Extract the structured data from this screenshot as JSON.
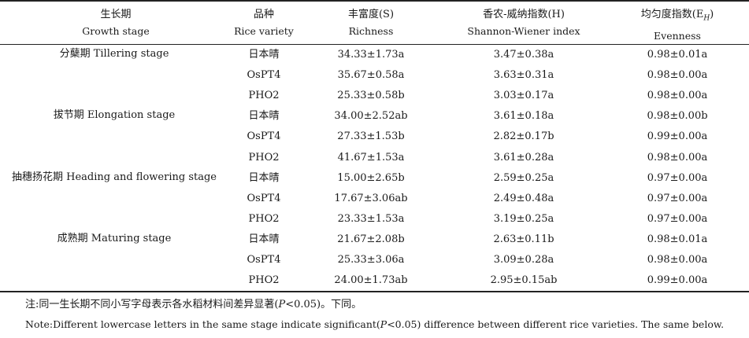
{
  "headers": {
    "stage_cn": "生长期",
    "stage_en": "Growth stage",
    "variety_cn": "品种",
    "variety_en": "Rice variety",
    "richness_cn": "丰富度(S)",
    "richness_en": "Richness",
    "shannon_cn": "香农-威纳指数(H)",
    "shannon_en": "Shannon-Wiener index",
    "evenness_cn": "均匀度指数(E",
    "evenness_sub": "H",
    "evenness_close": ")",
    "evenness_en": "Evenness"
  },
  "stages": [
    "分蘖期 Tillering stage",
    "拔节期 Elongation stage",
    "抽穗扬花期 Heading and flowering stage",
    "成熟期 Maturing stage"
  ],
  "rows": [
    {
      "variety": "日本晴",
      "richness": "34.33±1.73a",
      "shannon": "3.47±0.38a",
      "evenness": "0.98±0.01a"
    },
    {
      "variety": "OsPT4",
      "richness": "35.67±0.58a",
      "shannon": "3.63±0.31a",
      "evenness": "0.98±0.00a"
    },
    {
      "variety": "PHO2",
      "richness": "25.33±0.58b",
      "shannon": "3.03±0.17a",
      "evenness": "0.98±0.00a"
    },
    {
      "variety": "日本晴",
      "richness": "34.00±2.52ab",
      "shannon": "3.61±0.18a",
      "evenness": "0.98±0.00b"
    },
    {
      "variety": "OsPT4",
      "richness": "27.33±1.53b",
      "shannon": "2.82±0.17b",
      "evenness": "0.99±0.00a"
    },
    {
      "variety": "PHO2",
      "richness": "41.67±1.53a",
      "shannon": "3.61±0.28a",
      "evenness": "0.98±0.00a"
    },
    {
      "variety": "日本晴",
      "richness": "15.00±2.65b",
      "shannon": "2.59±0.25a",
      "evenness": "0.97±0.00a"
    },
    {
      "variety": "OsPT4",
      "richness": "17.67±3.06ab",
      "shannon": "2.49±0.48a",
      "evenness": "0.97±0.00a"
    },
    {
      "variety": "PHO2",
      "richness": "23.33±1.53a",
      "shannon": "3.19±0.25a",
      "evenness": "0.97±0.00a"
    },
    {
      "variety": "日本晴",
      "richness": "21.67±2.08b",
      "shannon": "2.63±0.11b",
      "evenness": "0.98±0.01a"
    },
    {
      "variety": "OsPT4",
      "richness": "25.33±3.06a",
      "shannon": "3.09±0.28a",
      "evenness": "0.98±0.00a"
    },
    {
      "variety": "PHO2",
      "richness": "24.00±1.73ab",
      "shannon": "2.95±0.15ab",
      "evenness": "0.99±0.00a"
    }
  ],
  "notes": {
    "cn_pre": "注:同一生长期不同小写字母表示各水稻材料间差异显著(",
    "cn_p": "P",
    "cn_post": "<0.05)。下同。",
    "en_pre": "Note:Different lowercase letters in the same stage indicate significant(",
    "en_p": "P",
    "en_post": "<0.05) difference between different rice varieties. The same below."
  }
}
